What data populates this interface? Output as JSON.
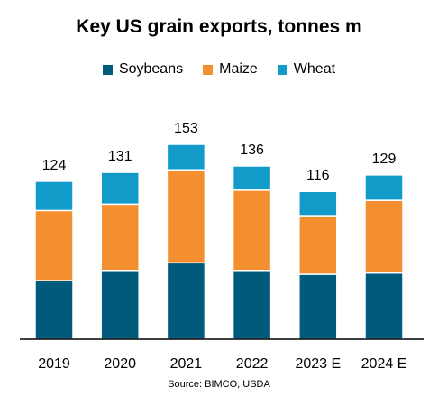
{
  "title": "Key US grain exports, tonnes m",
  "source": "Source: BIMCO, USDA",
  "colors": {
    "Soybeans": "#005a7c",
    "Maize": "#f38f2f",
    "Wheat": "#129ac9"
  },
  "chart_data": {
    "type": "bar",
    "stacked": true,
    "title": "Key US grain exports, tonnes m",
    "categories": [
      "2019",
      "2020",
      "2021",
      "2022",
      "2023 E",
      "2024 E"
    ],
    "series": [
      {
        "name": "Soybeans",
        "values": [
          46,
          54,
          60,
          54,
          51,
          52
        ]
      },
      {
        "name": "Maize",
        "values": [
          55,
          52,
          73,
          63,
          46,
          57
        ]
      },
      {
        "name": "Wheat",
        "values": [
          23,
          25,
          20,
          19,
          19,
          20
        ]
      }
    ],
    "totals": [
      124,
      131,
      153,
      136,
      116,
      129
    ],
    "ylim": [
      0,
      170
    ],
    "grid": false,
    "legend": "top"
  }
}
